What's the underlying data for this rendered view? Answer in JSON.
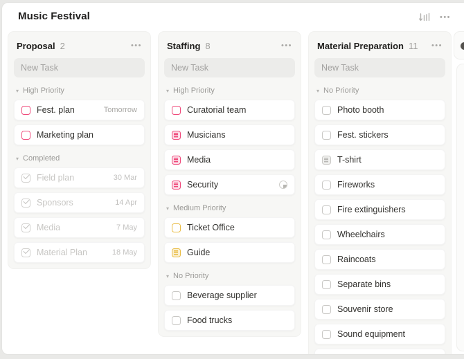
{
  "window": {
    "title": "Music Festival"
  },
  "icons": {
    "sort": "sort-bars-descending",
    "more": "•••",
    "collapse_triangle": "▾",
    "progress": "quarter-filled-circle"
  },
  "colors": {
    "accent_pink": "#ef4a7b",
    "accent_yellow": "#e9bc45",
    "column_bg": "#f7f7f5",
    "window_bg": "#ffffff",
    "muted_text": "#9b9a97"
  },
  "board": {
    "columns": [
      {
        "title": "Proposal",
        "count": "2",
        "new_task_placeholder": "New Task",
        "sections": [
          {
            "label": "High Priority",
            "tasks": [
              {
                "label": "Fest. plan",
                "icon": "checkbox-pink",
                "meta": "Tomorrow"
              },
              {
                "label": "Marketing plan",
                "icon": "checkbox-pink"
              }
            ]
          },
          {
            "label": "Completed",
            "tasks": [
              {
                "label": "Field plan",
                "icon": "checkbox-done",
                "meta": "30 Mar",
                "done": true
              },
              {
                "label": "Sponsors",
                "icon": "checkbox-done",
                "meta": "14 Apr",
                "done": true
              },
              {
                "label": "Media",
                "icon": "checkbox-done",
                "meta": "7 May",
                "done": true
              },
              {
                "label": "Material Plan",
                "icon": "checkbox-done",
                "meta": "18 May",
                "done": true
              }
            ]
          }
        ]
      },
      {
        "title": "Staffing",
        "count": "8",
        "new_task_placeholder": "New Task",
        "sections": [
          {
            "label": "High Priority",
            "tasks": [
              {
                "label": "Curatorial team",
                "icon": "checkbox-pink"
              },
              {
                "label": "Musicians",
                "icon": "list-pink"
              },
              {
                "label": "Media",
                "icon": "list-pink"
              },
              {
                "label": "Security",
                "icon": "list-pink",
                "meta_icon": "progress-icon"
              }
            ]
          },
          {
            "label": "Medium Priority",
            "tasks": [
              {
                "label": "Ticket Office",
                "icon": "checkbox-yellow"
              },
              {
                "label": "Guide",
                "icon": "list-yellow"
              }
            ]
          },
          {
            "label": "No Priority",
            "tasks": [
              {
                "label": "Beverage supplier",
                "icon": "checkbox-gray"
              },
              {
                "label": "Food trucks",
                "icon": "checkbox-gray"
              }
            ]
          }
        ]
      },
      {
        "title": "Material Preparation",
        "count": "11",
        "new_task_placeholder": "New Task",
        "sections": [
          {
            "label": "No Priority",
            "tasks": [
              {
                "label": "Photo booth",
                "icon": "checkbox-gray"
              },
              {
                "label": "Fest. stickers",
                "icon": "checkbox-gray"
              },
              {
                "label": "T-shirt",
                "icon": "list-gray"
              },
              {
                "label": "Fireworks",
                "icon": "checkbox-gray"
              },
              {
                "label": "Fire extinguishers",
                "icon": "checkbox-gray"
              },
              {
                "label": "Wheelchairs",
                "icon": "checkbox-gray"
              },
              {
                "label": "Raincoats",
                "icon": "checkbox-gray"
              },
              {
                "label": "Separate bins",
                "icon": "checkbox-gray"
              },
              {
                "label": "Souvenir store",
                "icon": "checkbox-gray"
              },
              {
                "label": "Sound equipment",
                "icon": "checkbox-gray"
              },
              {
                "label": "",
                "icon": "checkbox-gray"
              }
            ]
          }
        ]
      }
    ]
  }
}
